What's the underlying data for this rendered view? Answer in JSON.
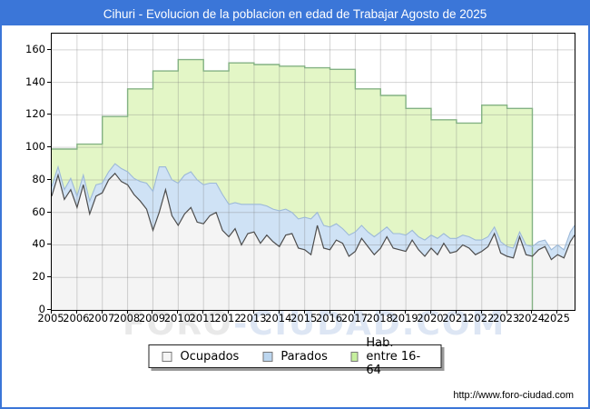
{
  "window": {
    "title": "Cihuri - Evolucion de la poblacion en edad de Trabajar Agosto de 2025",
    "title_bg": "#3b76d8",
    "url": "http://www.foro-ciudad.com"
  },
  "watermark": {
    "text": "FORO-CIUDAD.COM",
    "part1": "FORO",
    "part2": "-CIUDAD.COM"
  },
  "legend": {
    "items": [
      {
        "label": "Ocupados",
        "color": "#f5f5f5"
      },
      {
        "label": "Parados",
        "color": "#bcd6ef"
      },
      {
        "label": "Hab. entre 16-64",
        "color": "#c6ef9e"
      }
    ]
  },
  "chart_data": {
    "type": "area",
    "title": "Cihuri - Evolucion de la poblacion en edad de Trabajar Agosto de 2025",
    "xlabel": "",
    "ylabel": "",
    "grid": true,
    "legend_position": "bottom",
    "x_axis": {
      "min": 2005,
      "max": 2025.67,
      "ticks": [
        2005,
        2006,
        2007,
        2008,
        2009,
        2010,
        2011,
        2012,
        2013,
        2014,
        2015,
        2016,
        2017,
        2018,
        2019,
        2020,
        2021,
        2022,
        2023,
        2024,
        2025
      ]
    },
    "y_axis": {
      "min": 0,
      "max": 170,
      "ticks": [
        0,
        20,
        40,
        60,
        80,
        100,
        120,
        140,
        160
      ]
    },
    "colors": {
      "hab_fill": "#e3f6c6",
      "hab_line": "#84b284",
      "parados_fill": "#cfe2f5",
      "parados_line": "#9db9d8",
      "ocupados_fill": "#f4f4f4",
      "ocupados_line": "#4d4d4d",
      "gridline": "rgba(120,120,120,0.32)"
    },
    "hab_entre_16_64": {
      "name": "Hab. entre 16-64",
      "note": "annual step series, ends January 2024",
      "years": [
        2005,
        2006,
        2007,
        2008,
        2009,
        2010,
        2011,
        2012,
        2013,
        2014,
        2015,
        2016,
        2017,
        2018,
        2019,
        2020,
        2021,
        2022,
        2023
      ],
      "values": [
        99,
        102,
        119,
        136,
        147,
        154,
        147,
        152,
        151,
        150,
        149,
        148,
        136,
        132,
        124,
        117,
        115,
        126,
        124
      ],
      "end_x": 2024.0
    },
    "x_quarterly": [
      2005,
      2005.25,
      2005.5,
      2005.75,
      2006,
      2006.25,
      2006.5,
      2006.75,
      2007,
      2007.25,
      2007.5,
      2007.75,
      2008,
      2008.25,
      2008.5,
      2008.75,
      2009,
      2009.25,
      2009.5,
      2009.75,
      2010,
      2010.25,
      2010.5,
      2010.75,
      2011,
      2011.25,
      2011.5,
      2011.75,
      2012,
      2012.25,
      2012.5,
      2012.75,
      2013,
      2013.25,
      2013.5,
      2013.75,
      2014,
      2014.25,
      2014.5,
      2014.75,
      2015,
      2015.25,
      2015.5,
      2015.75,
      2016,
      2016.25,
      2016.5,
      2016.75,
      2017,
      2017.25,
      2017.5,
      2017.75,
      2018,
      2018.25,
      2018.5,
      2018.75,
      2019,
      2019.25,
      2019.5,
      2019.75,
      2020,
      2020.25,
      2020.5,
      2020.75,
      2021,
      2021.25,
      2021.5,
      2021.75,
      2022,
      2022.25,
      2022.5,
      2022.75,
      2023,
      2023.25,
      2023.5,
      2023.75,
      2024,
      2024.25,
      2024.5,
      2024.75,
      2025,
      2025.25,
      2025.5,
      2025.67
    ],
    "ocupados": {
      "name": "Ocupados",
      "values": [
        70,
        83,
        68,
        74,
        63,
        77,
        59,
        70,
        72,
        80,
        84,
        79,
        77,
        71,
        67,
        62,
        49,
        60,
        74,
        58,
        52,
        59,
        63,
        54,
        53,
        58,
        60,
        49,
        45,
        50,
        40,
        47,
        48,
        41,
        46,
        42,
        39,
        46,
        47,
        38,
        37,
        34,
        52,
        38,
        37,
        43,
        41,
        33,
        36,
        44,
        39,
        34,
        38,
        45,
        38,
        37,
        36,
        43,
        37,
        33,
        38,
        34,
        41,
        35,
        36,
        40,
        38,
        34,
        36,
        39,
        47,
        35,
        33,
        32,
        45,
        34,
        33,
        37,
        39,
        31,
        34,
        32,
        42,
        46
      ]
    },
    "parados": {
      "name": "Parados",
      "note": "stacked on top of Ocupados",
      "values": [
        6,
        5,
        6,
        7,
        7,
        6,
        8,
        7,
        6,
        5,
        6,
        8,
        8,
        10,
        12,
        16,
        24,
        28,
        14,
        22,
        26,
        24,
        22,
        26,
        24,
        20,
        18,
        22,
        20,
        16,
        25,
        18,
        17,
        24,
        18,
        20,
        22,
        16,
        13,
        18,
        20,
        22,
        8,
        14,
        14,
        10,
        9,
        13,
        12,
        8,
        9,
        11,
        10,
        6,
        9,
        10,
        10,
        6,
        8,
        10,
        8,
        10,
        6,
        9,
        8,
        6,
        7,
        9,
        7,
        6,
        4,
        7,
        6,
        6,
        3,
        6,
        6,
        5,
        4,
        6,
        6,
        5,
        6,
        6
      ]
    }
  }
}
